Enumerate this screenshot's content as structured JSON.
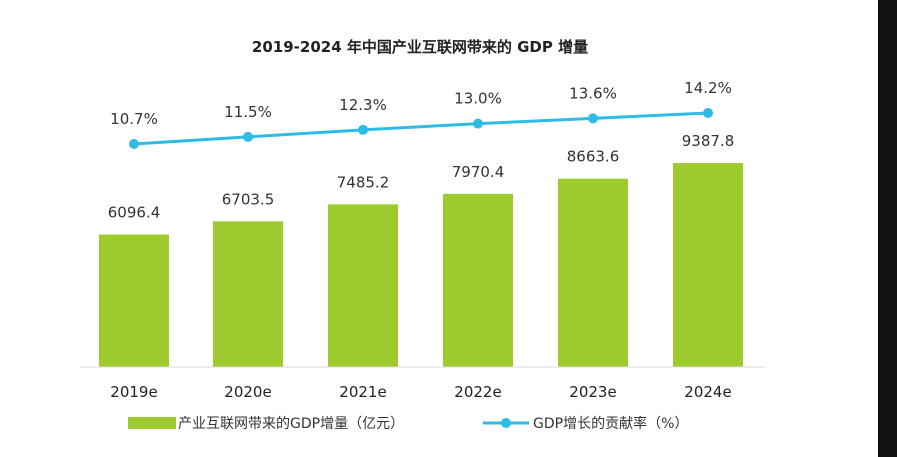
{
  "chart_data": {
    "type": "bar",
    "title": "2019-2024 年中国产业互联网带来的 GDP 增量",
    "categories": [
      "2019e",
      "2020e",
      "2021e",
      "2022e",
      "2023e",
      "2024e"
    ],
    "series": [
      {
        "name": "产业互联网带来的GDP增量（亿元）",
        "type": "bar",
        "color": "#9DCB2D",
        "values": [
          6096.4,
          6703.5,
          7485.2,
          7970.4,
          8663.6,
          9387.8
        ]
      },
      {
        "name": "GDP增长的贡献率（%）",
        "type": "line",
        "color": "#2EBBE6",
        "values": [
          10.7,
          11.5,
          12.3,
          13.0,
          13.6,
          14.2
        ],
        "labels": [
          "10.7%",
          "11.5%",
          "12.3%",
          "13.0%",
          "13.6%",
          "14.2%"
        ]
      }
    ],
    "bar_labels": [
      "6096.4",
      "6703.5",
      "7485.2",
      "7970.4",
      "8663.6",
      "9387.8"
    ],
    "ylim": [
      0,
      9387.8
    ],
    "legend_position": "bottom",
    "grid": false
  }
}
